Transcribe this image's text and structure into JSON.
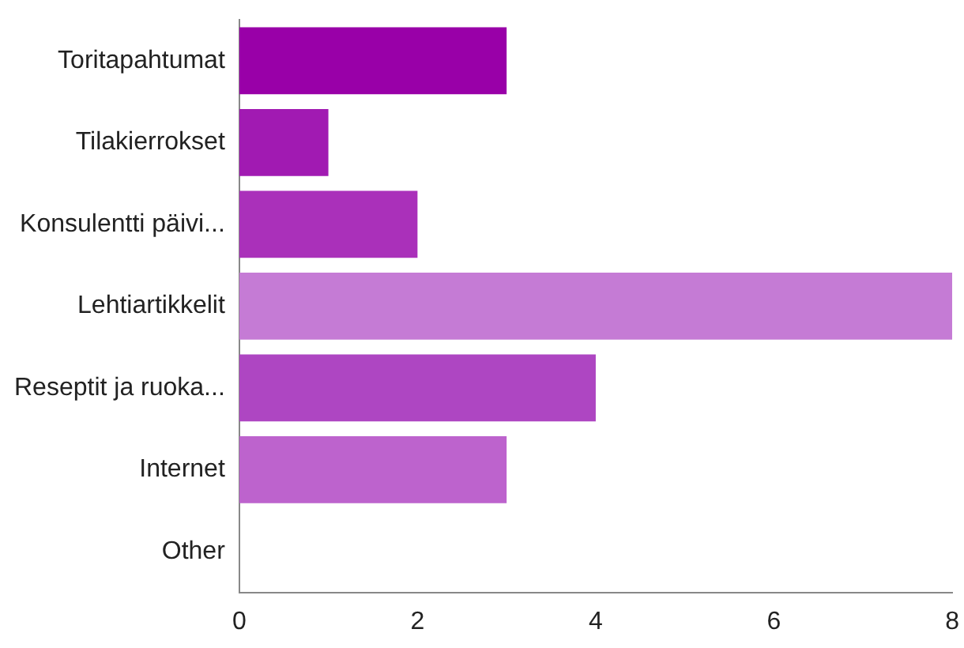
{
  "chart_data": {
    "type": "bar",
    "orientation": "horizontal",
    "categories": [
      "Toritapahtumat",
      "Tilakierrokset",
      "Konsulentti päivi...",
      "Lehtiartikkelit",
      "Reseptit ja ruoka...",
      "Internet",
      "Other"
    ],
    "values": [
      3,
      1,
      2,
      8,
      4,
      3,
      0
    ],
    "colors": [
      "#9900a8",
      "#a11ab2",
      "#aa30ba",
      "#c57bd5",
      "#ae46c2",
      "#bd63cd",
      "#c57bd5"
    ],
    "xlim": [
      0,
      8
    ],
    "xticks": [
      0,
      2,
      4,
      6,
      8
    ],
    "grid": false,
    "legend": false
  }
}
